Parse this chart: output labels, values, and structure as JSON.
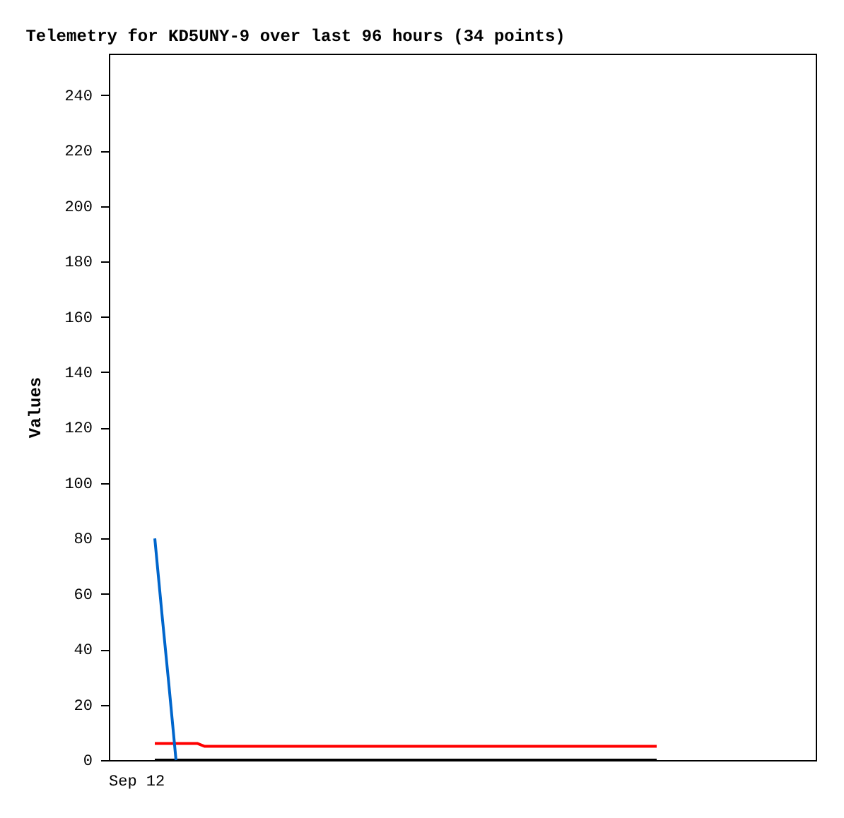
{
  "chart_data": {
    "type": "line",
    "title": "Telemetry for KD5UNY-9 over last 96 hours (34 points)",
    "ylabel": "Values",
    "annotations": [
      "Sep 12"
    ],
    "categories": [
      null,
      null,
      null,
      null,
      null,
      null,
      null,
      null,
      null,
      null,
      null,
      null,
      null,
      null,
      null,
      null,
      null,
      null,
      null,
      null,
      null,
      null,
      null,
      null,
      null,
      null,
      null,
      null,
      null,
      null,
      null,
      null,
      null,
      null,
      null,
      null,
      null,
      null,
      null,
      null,
      null,
      null,
      null,
      null,
      null,
      null,
      null,
      null,
      null,
      null,
      null,
      null,
      null,
      null,
      null,
      null,
      null,
      null,
      null,
      null,
      null,
      null,
      null,
      null,
      null,
      null,
      null,
      null,
      null,
      null,
      null,
      null,
      null,
      null,
      null,
      null,
      null,
      null,
      null,
      null,
      null,
      null,
      null,
      null,
      null,
      null,
      null,
      null,
      null,
      null,
      null,
      null,
      null,
      null,
      null,
      null,
      null,
      null,
      null,
      null
    ],
    "ylim": [
      0,
      255
    ],
    "yticks": [
      0,
      20,
      40,
      60,
      80,
      100,
      120,
      140,
      160,
      180,
      200,
      220,
      240
    ],
    "series": [
      {
        "color": "#000000",
        "values": [
          null,
          null,
          null,
          null,
          null,
          null,
          0,
          0,
          0,
          0,
          0,
          0,
          0,
          0,
          0,
          0,
          0,
          0,
          0,
          0,
          0,
          0,
          0,
          0,
          0,
          0,
          0,
          0,
          0,
          0,
          0,
          0,
          0,
          0,
          0,
          0,
          0,
          0,
          0,
          0,
          0,
          0,
          0,
          0,
          0,
          0,
          0,
          0,
          0,
          0,
          0,
          0,
          0,
          0,
          0,
          0,
          0,
          0,
          0,
          0,
          0,
          0,
          0,
          0,
          0,
          0,
          0,
          0,
          0,
          0,
          0,
          0,
          0,
          0,
          0,
          0,
          0,
          0,
          null,
          null,
          null,
          null,
          null,
          null,
          null,
          null,
          null,
          null,
          null,
          null,
          null,
          null,
          null,
          null,
          null,
          null,
          null,
          null,
          null,
          null
        ]
      },
      {
        "color": "#ff0000",
        "values": [
          null,
          null,
          null,
          null,
          null,
          null,
          6,
          6,
          6,
          6,
          6,
          6,
          6,
          5,
          5,
          5,
          5,
          5,
          5,
          5,
          5,
          5,
          5,
          5,
          5,
          5,
          5,
          5,
          5,
          5,
          5,
          5,
          5,
          5,
          5,
          5,
          5,
          5,
          5,
          5,
          5,
          5,
          5,
          5,
          5,
          5,
          5,
          5,
          5,
          5,
          5,
          5,
          5,
          5,
          5,
          5,
          5,
          5,
          5,
          5,
          5,
          5,
          5,
          5,
          5,
          5,
          5,
          5,
          5,
          5,
          5,
          5,
          5,
          5,
          5,
          5,
          5,
          5,
          null,
          null,
          null,
          null,
          null,
          null,
          null,
          null,
          null,
          null,
          null,
          null,
          null,
          null,
          null,
          null,
          null,
          null,
          null,
          null,
          null,
          null
        ]
      },
      {
        "color": "#0066cc",
        "values": [
          null,
          null,
          null,
          null,
          null,
          null,
          80,
          53,
          27,
          0,
          null,
          null,
          null,
          null,
          null,
          null,
          null,
          null,
          null,
          null,
          null,
          null,
          null,
          null,
          null,
          null,
          null,
          null,
          null,
          null,
          null,
          null,
          null,
          null,
          null,
          null,
          null,
          null,
          null,
          null,
          null,
          null,
          null,
          null,
          null,
          null,
          null,
          null,
          null,
          null,
          null,
          null,
          null,
          null,
          null,
          null,
          null,
          null,
          null,
          null,
          null,
          null,
          null,
          null,
          null,
          null,
          null,
          null,
          null,
          null,
          null,
          null,
          null,
          null,
          null,
          null,
          null,
          null,
          null,
          null,
          null,
          null,
          null,
          null,
          null,
          null,
          null,
          null,
          null,
          null,
          null,
          null,
          null,
          null,
          null,
          null,
          null,
          null,
          null,
          null
        ]
      }
    ]
  }
}
